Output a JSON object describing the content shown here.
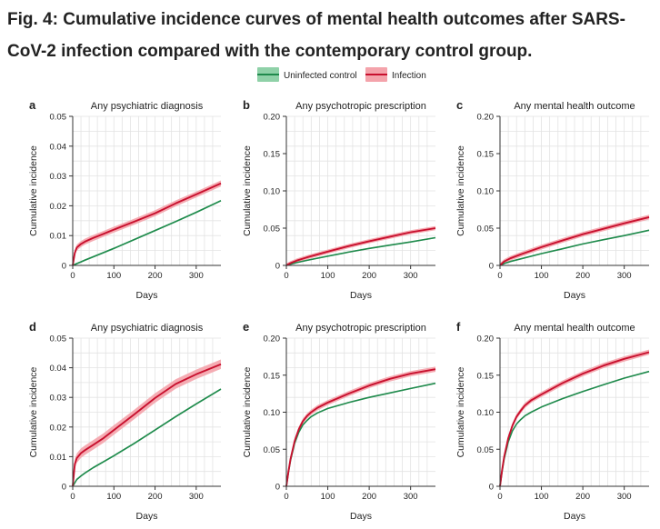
{
  "figure": {
    "title": "Fig. 4: Cumulative incidence curves of mental health outcomes after SARS-CoV-2 infection compared with the contemporary control group."
  },
  "legend": {
    "placement": "top-center",
    "items": [
      {
        "label": "Uninfected control",
        "color": "#1f8a4c",
        "band_color": "#8fd1a8"
      },
      {
        "label": "Infection",
        "color": "#c8102e",
        "band_color": "#f4a3ab"
      }
    ]
  },
  "chart_data": [
    {
      "type": "line",
      "panel_letter": "a",
      "title": "Any psychiatric diagnosis",
      "xlabel": "Days",
      "ylabel": "Cumulative incidence",
      "xlim": [
        0,
        360
      ],
      "ylim": [
        0,
        0.05
      ],
      "xticks": [
        0,
        100,
        200,
        300
      ],
      "yticks": [
        "0",
        "0.01",
        "0.02",
        "0.03",
        "0.04",
        "0.05"
      ],
      "grid": true,
      "x": [
        0,
        5,
        10,
        20,
        30,
        50,
        75,
        100,
        150,
        200,
        250,
        300,
        360
      ],
      "series": [
        {
          "name": "Uninfected control",
          "color": "#1f8a4c",
          "band": 0.0003,
          "values": [
            0,
            0.0003,
            0.0006,
            0.0012,
            0.0018,
            0.0029,
            0.0043,
            0.0057,
            0.0087,
            0.0117,
            0.0147,
            0.0178,
            0.0217
          ]
        },
        {
          "name": "Infection",
          "color": "#c8102e",
          "band": 0.001,
          "values": [
            0,
            0.0042,
            0.006,
            0.0072,
            0.008,
            0.0092,
            0.0106,
            0.012,
            0.0147,
            0.0175,
            0.0208,
            0.0238,
            0.0275
          ]
        }
      ]
    },
    {
      "type": "line",
      "panel_letter": "b",
      "title": "Any psychotropic prescription",
      "xlabel": "Days",
      "ylabel": "Cumulative incidence",
      "xlim": [
        0,
        360
      ],
      "ylim": [
        0,
        0.2
      ],
      "xticks": [
        0,
        100,
        200,
        300
      ],
      "yticks": [
        "0",
        "0.05",
        "0.10",
        "0.15",
        "0.20"
      ],
      "grid": true,
      "x": [
        0,
        10,
        25,
        50,
        100,
        150,
        200,
        250,
        300,
        360
      ],
      "series": [
        {
          "name": "Uninfected control",
          "color": "#1f8a4c",
          "band": 0.0008,
          "values": [
            0,
            0.0017,
            0.0038,
            0.0068,
            0.0125,
            0.0178,
            0.0228,
            0.0272,
            0.0315,
            0.0372
          ]
        },
        {
          "name": "Infection",
          "color": "#c8102e",
          "band": 0.0028,
          "values": [
            0,
            0.003,
            0.0065,
            0.0108,
            0.0185,
            0.0258,
            0.0325,
            0.0385,
            0.0445,
            0.05
          ]
        }
      ]
    },
    {
      "type": "line",
      "panel_letter": "c",
      "title": "Any mental health outcome",
      "xlabel": "Days",
      "ylabel": "Cumulative incidence",
      "xlim": [
        0,
        360
      ],
      "ylim": [
        0,
        0.2
      ],
      "xticks": [
        0,
        100,
        200,
        300
      ],
      "yticks": [
        "0",
        "0.05",
        "0.10",
        "0.15",
        "0.20"
      ],
      "grid": true,
      "x": [
        0,
        10,
        25,
        50,
        100,
        150,
        200,
        250,
        300,
        360
      ],
      "series": [
        {
          "name": "Uninfected control",
          "color": "#1f8a4c",
          "band": 0.0008,
          "values": [
            0,
            0.0025,
            0.0052,
            0.0088,
            0.0158,
            0.0222,
            0.0288,
            0.0345,
            0.04,
            0.0472
          ]
        },
        {
          "name": "Infection",
          "color": "#c8102e",
          "band": 0.0032,
          "values": [
            0,
            0.0052,
            0.0095,
            0.0148,
            0.0245,
            0.0333,
            0.0418,
            0.0492,
            0.0565,
            0.0648
          ]
        }
      ]
    },
    {
      "type": "line",
      "panel_letter": "d",
      "title": "Any psychiatric diagnosis",
      "xlabel": "Days",
      "ylabel": "Cumulative incidence",
      "xlim": [
        0,
        360
      ],
      "ylim": [
        0,
        0.05
      ],
      "xticks": [
        0,
        100,
        200,
        300
      ],
      "yticks": [
        "0",
        "0.01",
        "0.02",
        "0.03",
        "0.04",
        "0.05"
      ],
      "grid": true,
      "x": [
        0,
        5,
        10,
        20,
        30,
        50,
        75,
        100,
        150,
        200,
        250,
        300,
        360
      ],
      "series": [
        {
          "name": "Uninfected control",
          "color": "#1f8a4c",
          "band": 0.0003,
          "values": [
            0,
            0.0012,
            0.0023,
            0.0035,
            0.0045,
            0.0063,
            0.0083,
            0.0103,
            0.0145,
            0.019,
            0.0235,
            0.0278,
            0.0328
          ]
        },
        {
          "name": "Infection",
          "color": "#c8102e",
          "band": 0.0016,
          "values": [
            0,
            0.0075,
            0.0095,
            0.0112,
            0.0122,
            0.014,
            0.0163,
            0.019,
            0.0243,
            0.0298,
            0.0345,
            0.0378,
            0.0412
          ]
        }
      ]
    },
    {
      "type": "line",
      "panel_letter": "e",
      "title": "Any psychotropic prescription",
      "xlabel": "Days",
      "ylabel": "Cumulative incidence",
      "xlim": [
        0,
        360
      ],
      "ylim": [
        0,
        0.2
      ],
      "xticks": [
        0,
        100,
        200,
        300
      ],
      "yticks": [
        "0",
        "0.05",
        "0.10",
        "0.15",
        "0.20"
      ],
      "grid": true,
      "x": [
        0,
        5,
        10,
        20,
        30,
        40,
        50,
        60,
        75,
        100,
        150,
        200,
        250,
        300,
        360
      ],
      "series": [
        {
          "name": "Uninfected control",
          "color": "#1f8a4c",
          "band": 0.0008,
          "values": [
            0,
            0.019,
            0.035,
            0.058,
            0.073,
            0.083,
            0.089,
            0.094,
            0.099,
            0.105,
            0.113,
            0.12,
            0.126,
            0.132,
            0.139
          ]
        },
        {
          "name": "Infection",
          "color": "#c8102e",
          "band": 0.0035,
          "values": [
            0,
            0.02,
            0.037,
            0.061,
            0.077,
            0.088,
            0.095,
            0.1,
            0.106,
            0.113,
            0.125,
            0.136,
            0.145,
            0.152,
            0.158
          ]
        }
      ]
    },
    {
      "type": "line",
      "panel_letter": "f",
      "title": "Any mental health outcome",
      "xlabel": "Days",
      "ylabel": "Cumulative incidence",
      "xlim": [
        0,
        360
      ],
      "ylim": [
        0,
        0.2
      ],
      "xticks": [
        0,
        100,
        200,
        300
      ],
      "yticks": [
        "0",
        "0.05",
        "0.10",
        "0.15",
        "0.20"
      ],
      "grid": true,
      "x": [
        0,
        5,
        10,
        20,
        30,
        40,
        50,
        60,
        75,
        100,
        150,
        200,
        250,
        300,
        360
      ],
      "series": [
        {
          "name": "Uninfected control",
          "color": "#1f8a4c",
          "band": 0.0008,
          "values": [
            0,
            0.02,
            0.037,
            0.06,
            0.075,
            0.084,
            0.09,
            0.095,
            0.1,
            0.107,
            0.118,
            0.128,
            0.137,
            0.146,
            0.155
          ]
        },
        {
          "name": "Infection",
          "color": "#c8102e",
          "band": 0.0035,
          "values": [
            0,
            0.022,
            0.04,
            0.065,
            0.082,
            0.094,
            0.102,
            0.109,
            0.116,
            0.124,
            0.139,
            0.152,
            0.163,
            0.172,
            0.181
          ]
        }
      ]
    }
  ]
}
